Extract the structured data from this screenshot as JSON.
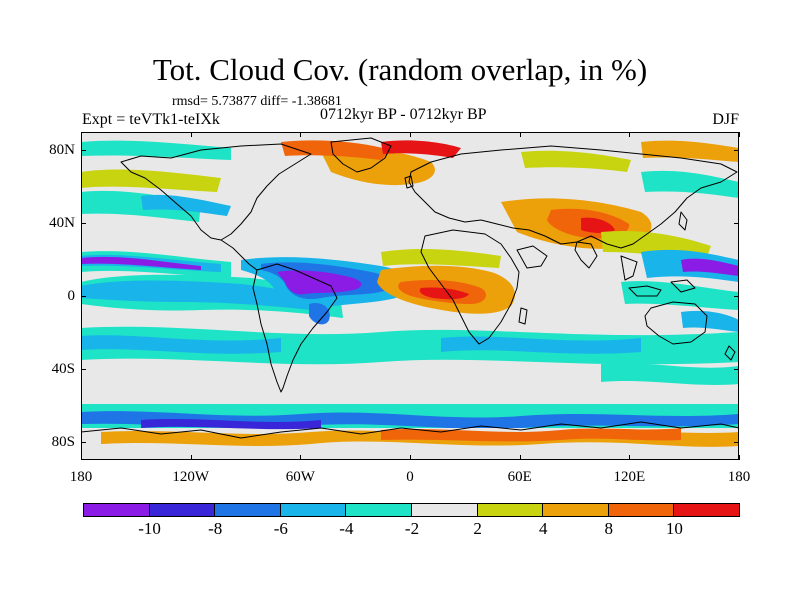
{
  "figure": {
    "title": "Tot. Cloud Cov. (random overlap, in %)",
    "stats": "rmsd= 5.73877 diff= -1.38681",
    "experiment": "Expt = teVTk1-teIXk",
    "period": "0712kyr BP - 0712kyr BP",
    "season": "DJF"
  },
  "map": {
    "projection": "cylindrical-equidistant",
    "lon_range": [
      -180,
      180
    ],
    "lat_range": [
      -90,
      90
    ],
    "lat_ticks": [
      {
        "value": 80,
        "label": "80N"
      },
      {
        "value": 40,
        "label": "40N"
      },
      {
        "value": 0,
        "label": "0"
      },
      {
        "value": -40,
        "label": "40S"
      },
      {
        "value": -80,
        "label": "80S"
      }
    ],
    "lon_ticks": [
      {
        "value": -180,
        "label": "180"
      },
      {
        "value": -120,
        "label": "120W"
      },
      {
        "value": -60,
        "label": "60W"
      },
      {
        "value": 0,
        "label": "0"
      },
      {
        "value": 60,
        "label": "60E"
      },
      {
        "value": 120,
        "label": "120E"
      },
      {
        "value": 180,
        "label": "180"
      }
    ],
    "coastline_color": "#000000",
    "colorbar": {
      "levels": [
        "-10",
        "-8",
        "-6",
        "-4",
        "-2",
        "2",
        "4",
        "8",
        "10"
      ],
      "colors": [
        "#8a1ce6",
        "#3a26d9",
        "#1f74e6",
        "#19b4e9",
        "#1ee3c6",
        "#e8e8e8",
        "#c8d410",
        "#eca00a",
        "#f0640a",
        "#e61414"
      ]
    }
  }
}
